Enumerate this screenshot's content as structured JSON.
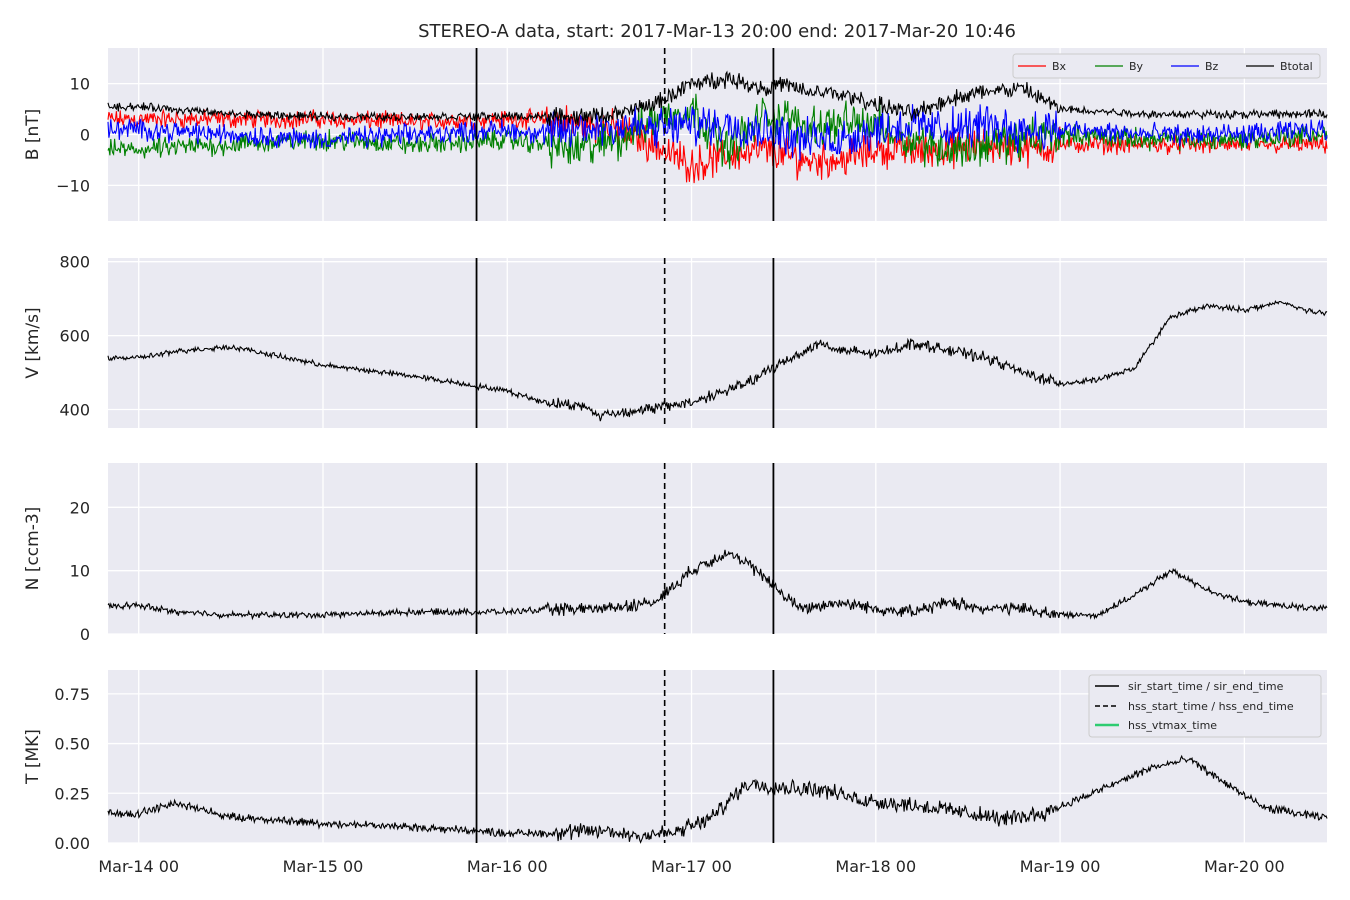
{
  "title": "STEREO-A data, start: 2017-Mar-13 20:00  end: 2017-Mar-20 10:46",
  "colors": {
    "panel_bg": "#EAEAF2",
    "grid": "#FFFFFF",
    "bx": "#FF0000",
    "by": "#008000",
    "bz": "#0000FF",
    "btotal": "#000000",
    "vtmax": "#2ECC71"
  },
  "chart_data": [
    {
      "type": "line",
      "ylabel": "B [nT]",
      "ylim": [
        -17,
        17
      ],
      "yticks": [
        -10,
        0,
        10
      ],
      "legend": {
        "placement": "top-right",
        "entries": [
          "Bx",
          "By",
          "Bz",
          "Btotal"
        ]
      },
      "series": [
        {
          "name": "Btotal",
          "x_days": [
            0,
            0.5,
            1,
            1.5,
            2,
            2.2,
            2.4,
            2.6,
            2.8,
            3.0,
            3.2,
            3.4,
            3.5,
            3.6,
            3.8,
            4.0,
            4.2,
            4.4,
            4.6,
            4.8,
            5.0,
            5.5,
            6.0,
            6.4
          ],
          "values": [
            5.5,
            4,
            3.5,
            3.5,
            3.6,
            3.5,
            3.5,
            4,
            6,
            10,
            11,
            9,
            10,
            8.5,
            8,
            6,
            4,
            7,
            8.5,
            9,
            5,
            4,
            4,
            4
          ]
        },
        {
          "name": "Bx",
          "x_days": [
            0,
            0.5,
            1,
            1.5,
            2,
            2.2,
            2.4,
            2.6,
            2.8,
            3.0,
            3.2,
            3.4,
            3.5,
            3.6,
            3.8,
            4.0,
            4.2,
            4.4,
            4.6,
            4.8,
            5.0,
            5.5,
            6.0,
            6.4
          ],
          "values": [
            3,
            3,
            3,
            2.5,
            3,
            3,
            2,
            1,
            -2,
            -6,
            -4,
            -3,
            -4,
            -5,
            -5,
            -3,
            -3,
            -3,
            -2,
            -3,
            -2,
            -2,
            -2,
            -2
          ]
        },
        {
          "name": "By",
          "x_days": [
            0,
            0.5,
            1,
            1.5,
            2,
            2.2,
            2.4,
            2.6,
            2.8,
            3.0,
            3.2,
            3.4,
            3.5,
            3.6,
            3.8,
            4.0,
            4.2,
            4.4,
            4.6,
            4.8,
            5.0,
            5.5,
            6.0,
            6.4
          ],
          "values": [
            -3,
            -2,
            -1,
            -2,
            -1,
            -2,
            -3,
            -1,
            3,
            5,
            -3,
            4,
            3,
            2,
            2,
            2,
            -1,
            -3,
            -2,
            -1,
            0,
            -1,
            -1,
            0
          ]
        },
        {
          "name": "Bz",
          "x_days": [
            0,
            0.5,
            1,
            1.5,
            2,
            2.2,
            2.4,
            2.6,
            2.8,
            3.0,
            3.2,
            3.4,
            3.5,
            3.6,
            3.8,
            4.0,
            4.2,
            4.4,
            4.6,
            4.8,
            5.0,
            5.5,
            6.0,
            6.4
          ],
          "values": [
            1,
            0,
            -1,
            0,
            1,
            0,
            1,
            2,
            1,
            2,
            2,
            1,
            0,
            -1,
            -1,
            1,
            2,
            1,
            2,
            1,
            1,
            0,
            0,
            1
          ]
        }
      ]
    },
    {
      "type": "line",
      "ylabel": "V [km/s]",
      "ylim": [
        350,
        810
      ],
      "yticks": [
        400,
        600,
        800
      ],
      "series": [
        {
          "name": "V",
          "x_days": [
            0,
            0.25,
            0.5,
            0.75,
            1,
            1.25,
            1.5,
            1.75,
            2,
            2.2,
            2.4,
            2.5,
            2.75,
            3.0,
            3.3,
            3.5,
            3.7,
            3.8,
            4.0,
            4.2,
            4.4,
            4.6,
            4.8,
            5.0,
            5.2,
            5.4,
            5.6,
            5.8,
            6.0,
            6.2,
            6.4
          ],
          "values": [
            540,
            560,
            570,
            545,
            520,
            505,
            490,
            470,
            450,
            420,
            410,
            385,
            400,
            420,
            470,
            530,
            580,
            560,
            550,
            580,
            560,
            540,
            500,
            470,
            480,
            510,
            650,
            680,
            670,
            690,
            660
          ]
        }
      ]
    },
    {
      "type": "line",
      "ylabel": "N [ccm-3]",
      "ylim": [
        0,
        27
      ],
      "yticks": [
        0,
        10,
        20
      ],
      "series": [
        {
          "name": "N",
          "x_days": [
            0,
            0.2,
            0.5,
            1,
            1.5,
            2,
            2.2,
            2.5,
            2.8,
            3.0,
            3.2,
            3.4,
            3.5,
            3.6,
            3.8,
            4.0,
            4.2,
            4.4,
            4.6,
            4.8,
            5.0,
            5.2,
            5.4,
            5.6,
            5.8,
            6.0,
            6.4
          ],
          "values": [
            4.5,
            3.5,
            3,
            3,
            3.5,
            3.5,
            3.8,
            4,
            5,
            10,
            13,
            9,
            6,
            4,
            5,
            4,
            3.5,
            5,
            4,
            4,
            3,
            3,
            6,
            10,
            7,
            5,
            4
          ]
        }
      ]
    },
    {
      "type": "line",
      "ylabel": "T [MK]",
      "ylim": [
        0,
        0.87
      ],
      "yticks": [
        0.0,
        0.25,
        0.5,
        0.75
      ],
      "yticklabels": [
        "0.00",
        "0.25",
        "0.50",
        "0.75"
      ],
      "legend": {
        "placement": "top-right",
        "entries": [
          "sir_start_time / sir_end_time",
          "hss_start_time / hss_end_time",
          "hss_vtmax_time"
        ]
      },
      "series": [
        {
          "name": "T",
          "x_days": [
            0,
            0.2,
            0.3,
            0.5,
            1,
            1.5,
            2,
            2.2,
            2.5,
            2.7,
            2.9,
            3.1,
            3.3,
            3.5,
            3.7,
            3.9,
            4.1,
            4.3,
            4.5,
            4.7,
            4.9,
            5.1,
            5.3,
            5.5,
            5.7,
            5.9,
            6.1,
            6.4
          ],
          "values": [
            0.15,
            0.2,
            0.18,
            0.13,
            0.1,
            0.08,
            0.05,
            0.05,
            0.06,
            0.04,
            0.05,
            0.12,
            0.3,
            0.28,
            0.27,
            0.22,
            0.2,
            0.18,
            0.15,
            0.12,
            0.15,
            0.22,
            0.3,
            0.38,
            0.42,
            0.3,
            0.18,
            0.13
          ]
        }
      ]
    }
  ],
  "x_axis": {
    "ticks": [
      {
        "day": 0,
        "label": "Mar-14 00"
      },
      {
        "day": 1,
        "label": "Mar-15 00"
      },
      {
        "day": 2,
        "label": "Mar-16 00"
      },
      {
        "day": 3,
        "label": "Mar-17 00"
      },
      {
        "day": 4,
        "label": "Mar-18 00"
      },
      {
        "day": 5,
        "label": "Mar-19 00"
      },
      {
        "day": 6,
        "label": "Mar-20 00"
      }
    ],
    "xlim_days": [
      -0.1667,
      6.4486
    ]
  },
  "event_lines": {
    "sir_start_day": 1.8333,
    "hss_start_day": 2.8542,
    "sir_end_day": 3.4444
  }
}
